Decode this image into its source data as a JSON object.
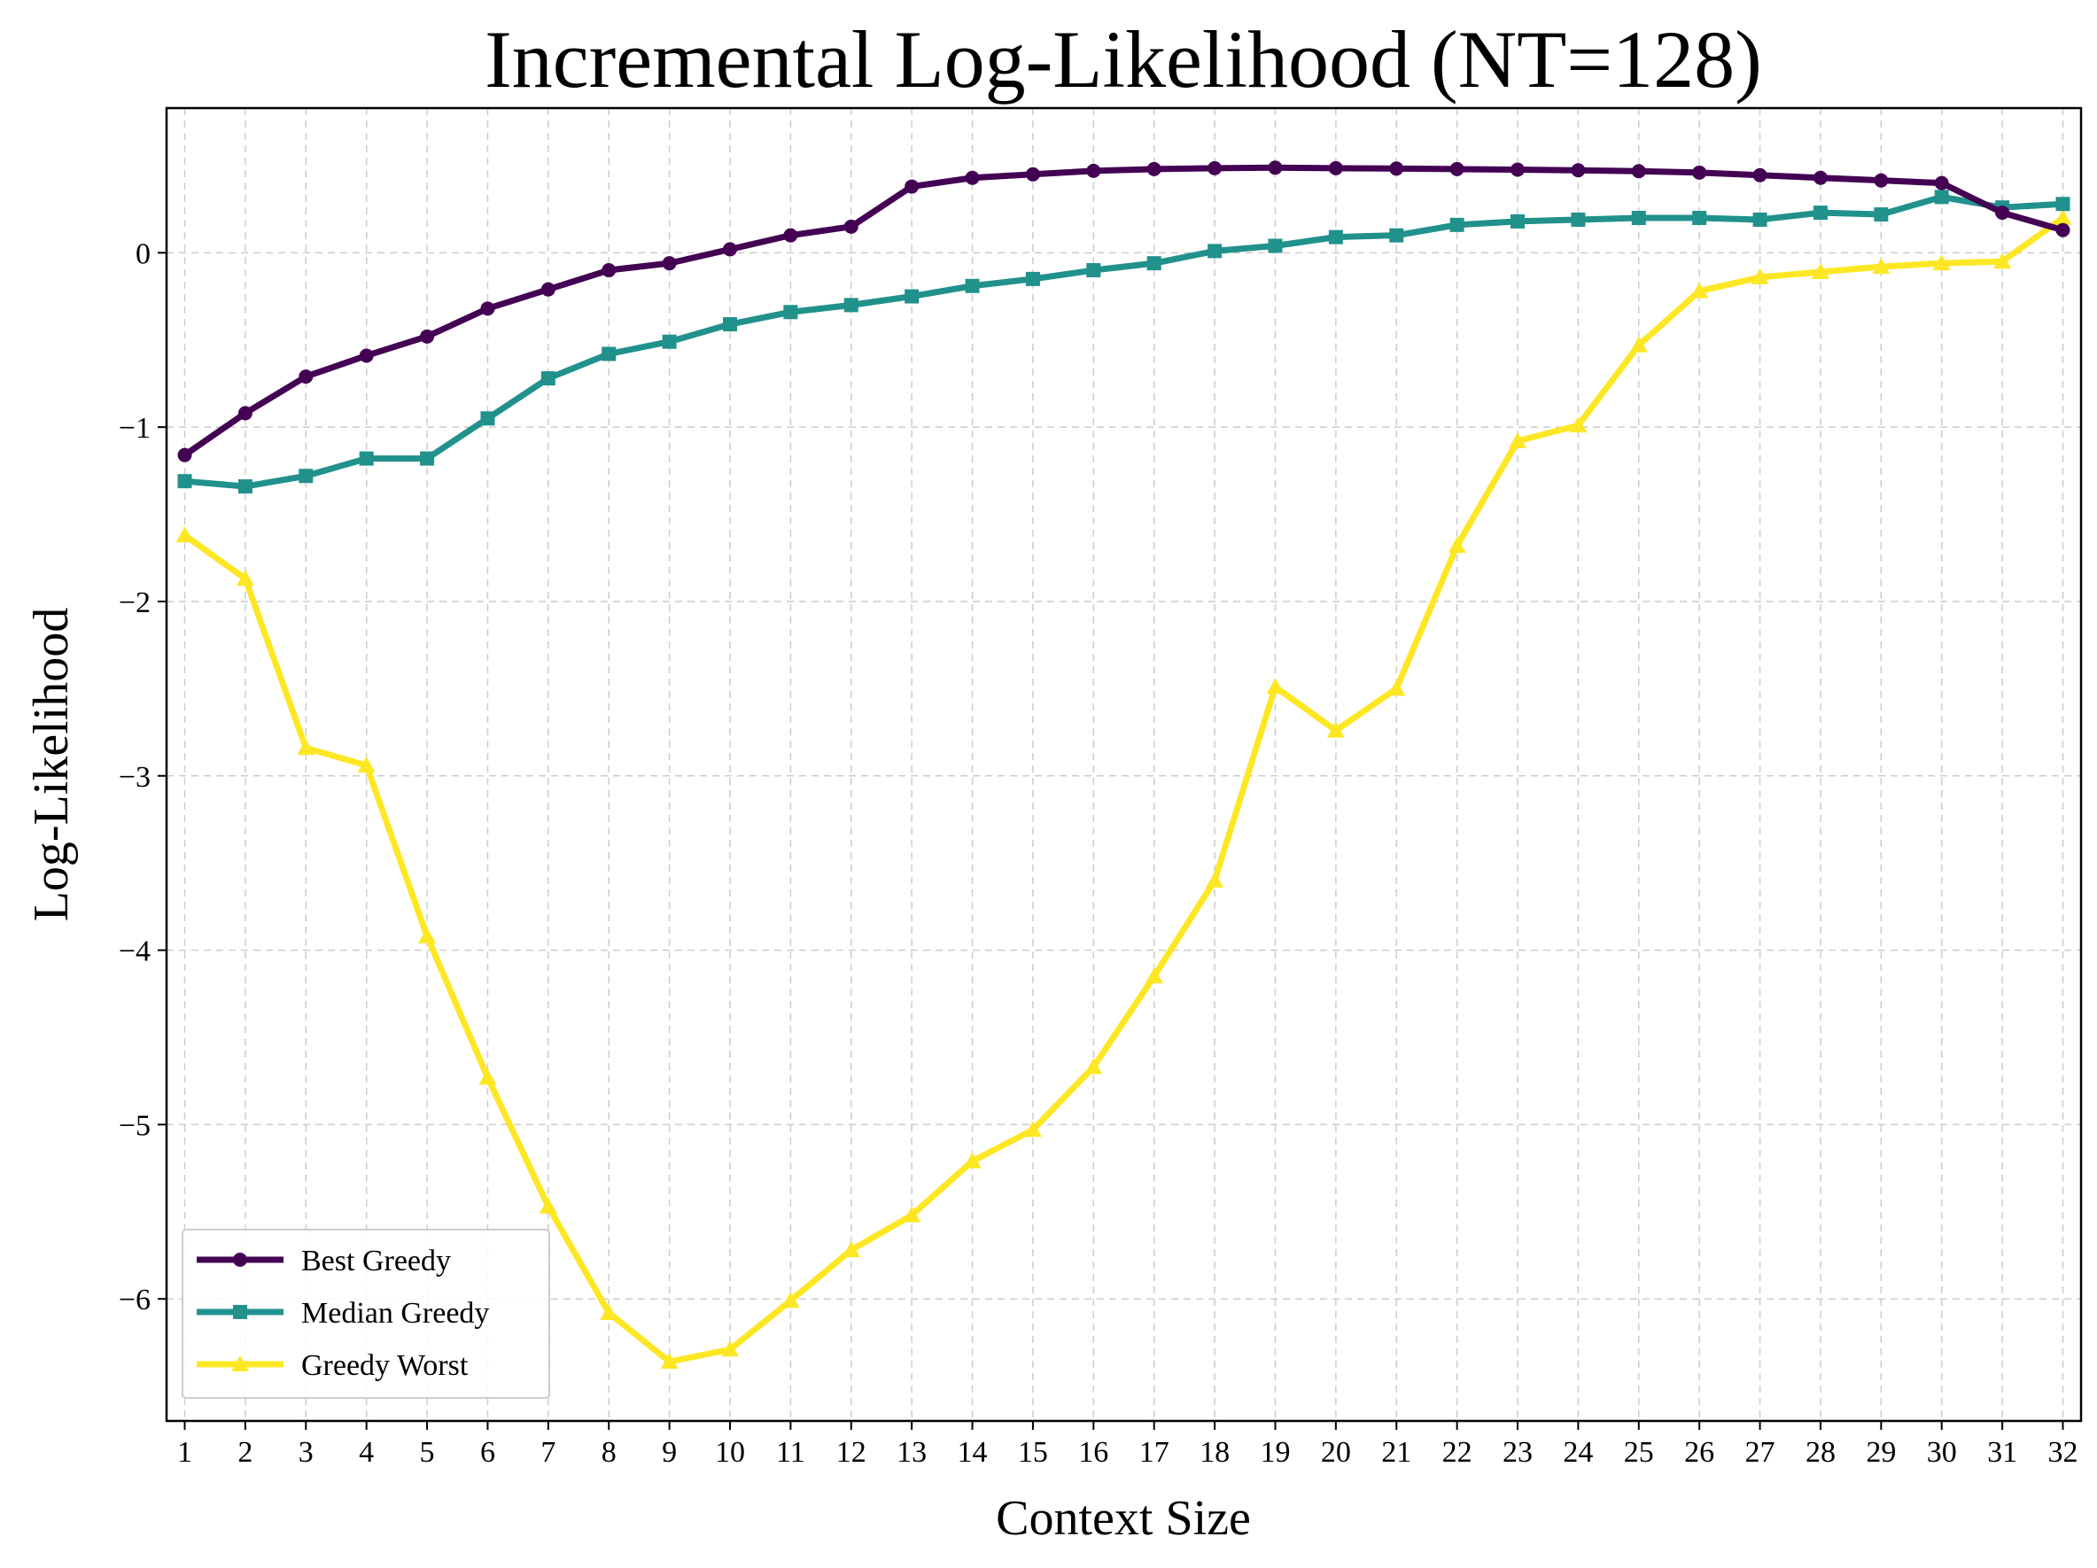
{
  "chart_data": {
    "type": "line",
    "title": "Incremental Log-Likelihood (NT=128)",
    "xlabel": "Context Size",
    "ylabel": "Log-Likelihood",
    "x": [
      1,
      2,
      3,
      4,
      5,
      6,
      7,
      8,
      9,
      10,
      11,
      12,
      13,
      14,
      15,
      16,
      17,
      18,
      19,
      20,
      21,
      22,
      23,
      24,
      25,
      26,
      27,
      28,
      29,
      30,
      31,
      32
    ],
    "xlim": [
      0.7,
      32.3
    ],
    "ylim": [
      -6.7,
      0.83
    ],
    "yticks": [
      0,
      -1,
      -2,
      -3,
      -4,
      -5,
      -6
    ],
    "ytick_labels": [
      "0",
      "−1",
      "−2",
      "−3",
      "−4",
      "−5",
      "−6"
    ],
    "grid": true,
    "legend_position": "lower-left",
    "series": [
      {
        "name": "Best Greedy",
        "color": "#440154",
        "marker": "circle",
        "values": [
          -1.16,
          -0.92,
          -0.71,
          -0.59,
          -0.48,
          -0.32,
          -0.21,
          -0.1,
          -0.06,
          0.02,
          0.1,
          0.15,
          0.38,
          0.43,
          0.45,
          0.47,
          0.48,
          0.485,
          0.488,
          0.485,
          0.483,
          0.48,
          0.477,
          0.473,
          0.468,
          0.46,
          0.445,
          0.43,
          0.415,
          0.4,
          0.23,
          0.13
        ]
      },
      {
        "name": "Median Greedy",
        "color": "#21918c",
        "marker": "square",
        "values": [
          -1.31,
          -1.34,
          -1.28,
          -1.18,
          -1.18,
          -0.95,
          -0.72,
          -0.58,
          -0.51,
          -0.41,
          -0.34,
          -0.3,
          -0.25,
          -0.19,
          -0.15,
          -0.1,
          -0.06,
          0.01,
          0.04,
          0.09,
          0.1,
          0.16,
          0.18,
          0.19,
          0.2,
          0.2,
          0.19,
          0.23,
          0.22,
          0.32,
          0.26,
          0.28
        ]
      },
      {
        "name": "Greedy Worst",
        "color": "#fde725",
        "marker": "triangle",
        "values": [
          -1.62,
          -1.87,
          -2.84,
          -2.94,
          -3.92,
          -4.73,
          -5.47,
          -6.08,
          -6.36,
          -6.29,
          -6.01,
          -5.72,
          -5.52,
          -5.21,
          -5.03,
          -4.67,
          -4.15,
          -3.6,
          -2.49,
          -2.74,
          -2.5,
          -1.68,
          -1.08,
          -0.99,
          -0.53,
          -0.22,
          -0.14,
          -0.11,
          -0.08,
          -0.06,
          -0.05,
          0.2
        ]
      }
    ]
  }
}
